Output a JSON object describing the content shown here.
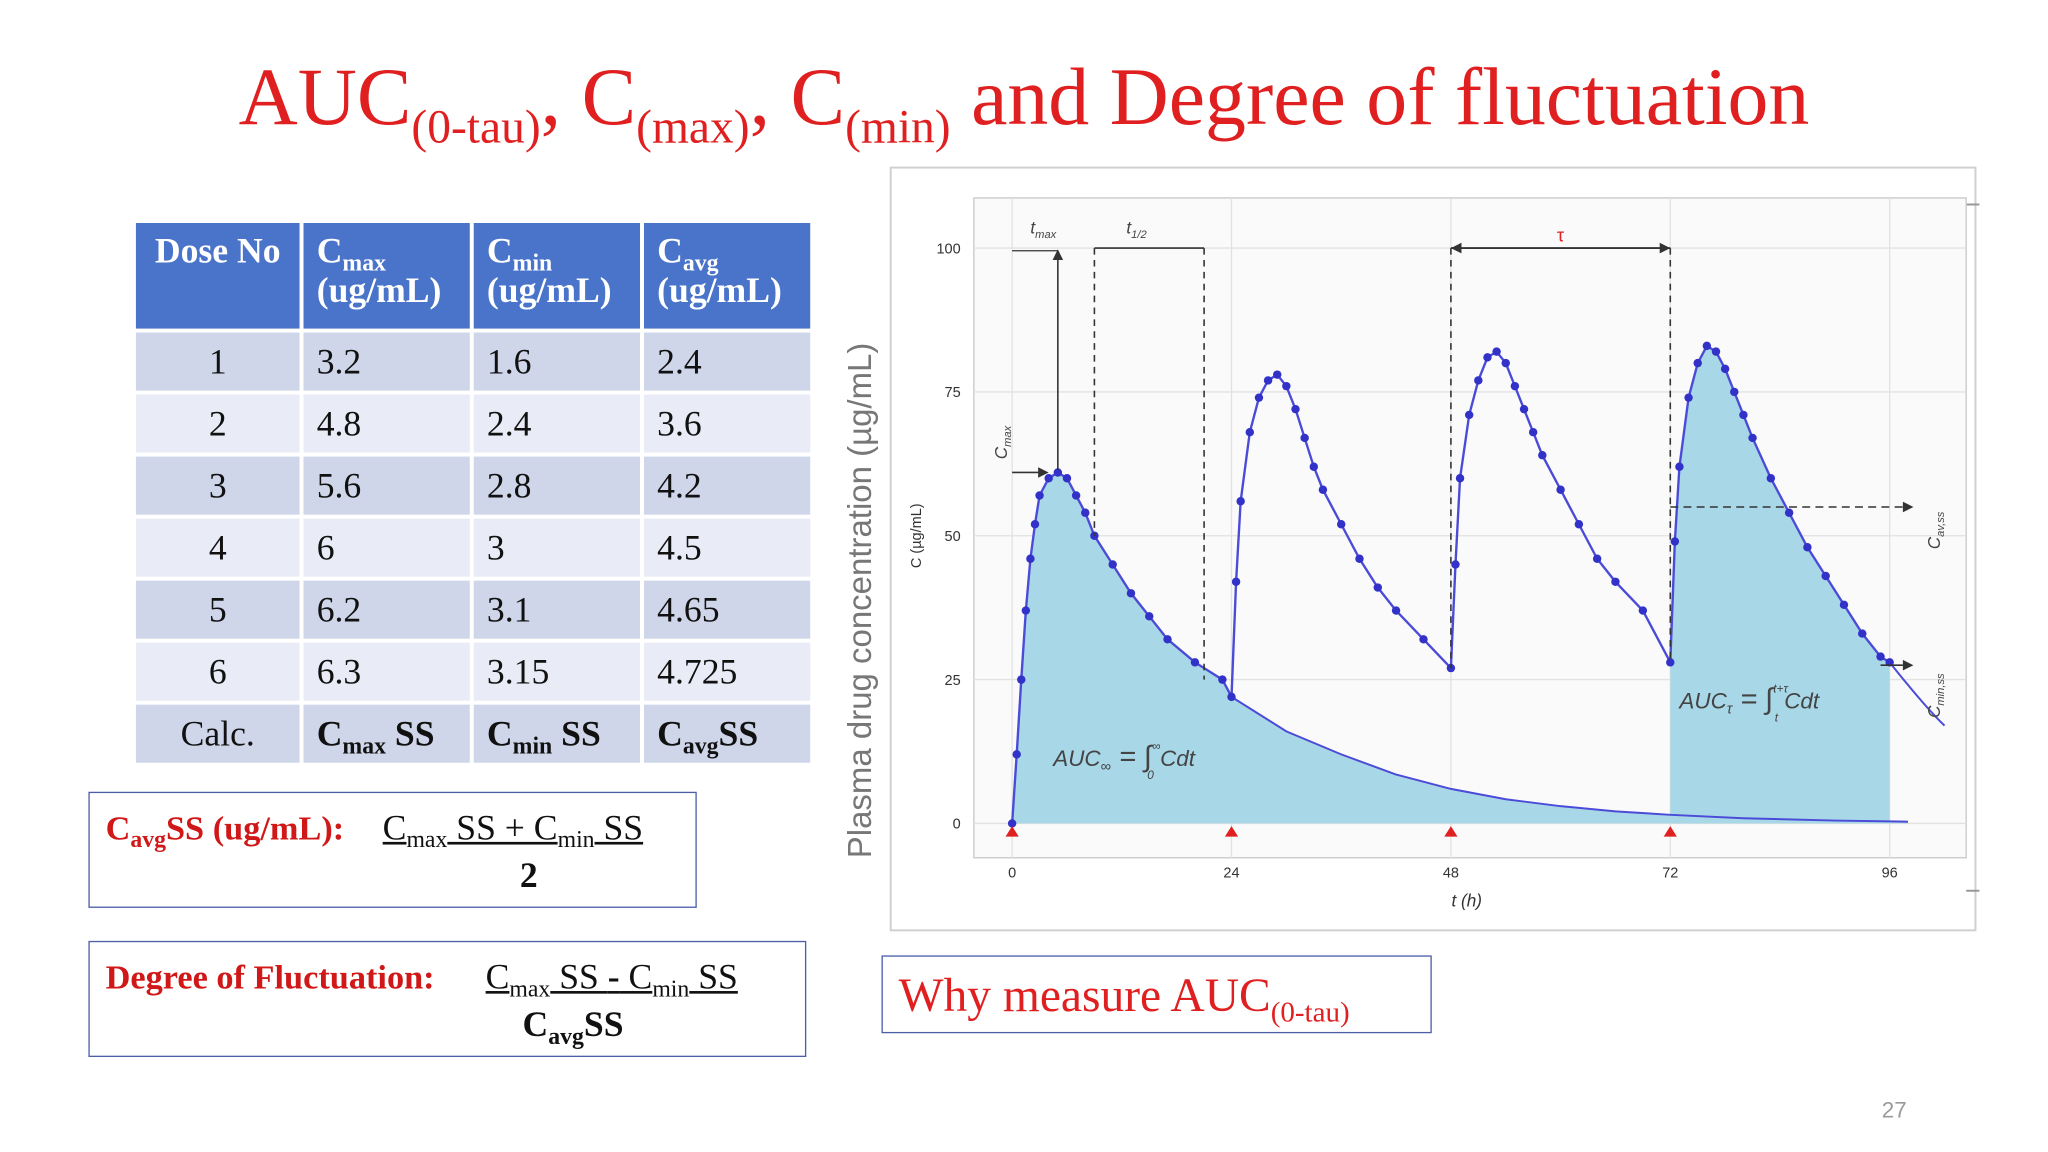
{
  "slide": {
    "title": {
      "part1": "AUC",
      "sub1": "(0-tau)",
      "sep1": ", C",
      "sub2": "(max)",
      "sep2": ", C",
      "sub3": "(min)",
      "rest": " and Degree of fluctuation"
    },
    "page_number": "27"
  },
  "table": {
    "headers": [
      {
        "main": "Dose No",
        "sub": "",
        "unit": ""
      },
      {
        "main": "C",
        "sub": "max",
        "unit": "(ug/mL)"
      },
      {
        "main": "C",
        "sub": "min",
        "unit": "(ug/mL)"
      },
      {
        "main": "C",
        "sub": "avg",
        "unit": "(ug/mL)"
      }
    ],
    "rows": [
      [
        "1",
        "3.2",
        "1.6",
        "2.4"
      ],
      [
        "2",
        "4.8",
        "2.4",
        "3.6"
      ],
      [
        "3",
        "5.6",
        "2.8",
        "4.2"
      ],
      [
        "4",
        "6",
        "3",
        "4.5"
      ],
      [
        "5",
        "6.2",
        "3.1",
        "4.65"
      ],
      [
        "6",
        "6.3",
        "3.15",
        "4.725"
      ]
    ],
    "calc_row": {
      "label": "Calc.",
      "cells": [
        {
          "main": "C",
          "sub": "max",
          "suffix": " SS"
        },
        {
          "main": "C",
          "sub": "min",
          "suffix": " SS"
        },
        {
          "main": "C",
          "sub": "avg",
          "suffix": "SS"
        }
      ]
    }
  },
  "formula_avg": {
    "label_main": "C",
    "label_sub": "avg",
    "label_rest": "SS (ug/mL):",
    "num_c1": "C",
    "num_sub1": "max",
    "num_mid": " SS + C",
    "num_sub2": "min",
    "num_end": " SS",
    "denominator": "2"
  },
  "formula_fluct": {
    "label": "Degree of Fluctuation:",
    "num_c1": "C",
    "num_sub1": "max",
    "num_mid": " SS ",
    "num_minus": "-",
    "num_c2": " C",
    "num_sub2": "min",
    "num_end": " SS",
    "den_main": "C",
    "den_sub": "avg",
    "den_rest": "SS"
  },
  "why_box": {
    "text": "Why measure AUC",
    "sub": "(0-tau)"
  },
  "chart_data": {
    "type": "line",
    "outer_ylabel": "Plasma drug concentration (µg/mL)",
    "ylabel": "C (µg/mL)",
    "xlabel": "t (h)",
    "xlim": [
      0,
      96
    ],
    "ylim": [
      0,
      100
    ],
    "xticks": [
      "0",
      "24",
      "48",
      "72",
      "96"
    ],
    "yticks": [
      "0",
      "25",
      "50",
      "75",
      "100"
    ],
    "dose_times": [
      0,
      24,
      48,
      72
    ],
    "series": [
      {
        "points": [
          [
            0,
            0
          ],
          [
            0.5,
            12
          ],
          [
            1,
            25
          ],
          [
            1.5,
            37
          ],
          [
            2,
            46
          ],
          [
            2.5,
            52
          ],
          [
            3,
            57
          ],
          [
            4,
            60
          ],
          [
            5,
            61
          ],
          [
            6,
            60
          ],
          [
            7,
            57
          ],
          [
            8,
            54
          ],
          [
            9,
            50
          ],
          [
            11,
            45
          ],
          [
            13,
            40
          ],
          [
            15,
            36
          ],
          [
            17,
            32
          ],
          [
            20,
            28
          ],
          [
            23,
            25
          ],
          [
            24,
            22
          ],
          [
            24.5,
            42
          ],
          [
            25,
            56
          ],
          [
            26,
            68
          ],
          [
            27,
            74
          ],
          [
            28,
            77
          ],
          [
            29,
            78
          ],
          [
            30,
            76
          ],
          [
            31,
            72
          ],
          [
            32,
            67
          ],
          [
            33,
            62
          ],
          [
            34,
            58
          ],
          [
            36,
            52
          ],
          [
            38,
            46
          ],
          [
            40,
            41
          ],
          [
            42,
            37
          ],
          [
            45,
            32
          ],
          [
            48,
            27
          ],
          [
            48.5,
            45
          ],
          [
            49,
            60
          ],
          [
            50,
            71
          ],
          [
            51,
            77
          ],
          [
            52,
            81
          ],
          [
            53,
            82
          ],
          [
            54,
            80
          ],
          [
            55,
            76
          ],
          [
            56,
            72
          ],
          [
            57,
            68
          ],
          [
            58,
            64
          ],
          [
            60,
            58
          ],
          [
            62,
            52
          ],
          [
            64,
            46
          ],
          [
            66,
            42
          ],
          [
            69,
            37
          ],
          [
            72,
            28
          ],
          [
            72.5,
            49
          ],
          [
            73,
            62
          ],
          [
            74,
            74
          ],
          [
            75,
            80
          ],
          [
            76,
            83
          ],
          [
            77,
            82
          ],
          [
            78,
            79
          ],
          [
            79,
            75
          ],
          [
            80,
            71
          ],
          [
            81,
            67
          ],
          [
            83,
            60
          ],
          [
            85,
            54
          ],
          [
            87,
            48
          ],
          [
            89,
            43
          ],
          [
            91,
            38
          ],
          [
            93,
            33
          ],
          [
            95,
            29
          ],
          [
            96,
            28
          ]
        ]
      }
    ],
    "single_dose_tail": [
      [
        24,
        22
      ],
      [
        30,
        16
      ],
      [
        36,
        12
      ],
      [
        42,
        8.5
      ],
      [
        48,
        6
      ],
      [
        54,
        4.2
      ],
      [
        60,
        3
      ],
      [
        66,
        2.1
      ],
      [
        72,
        1.5
      ],
      [
        80,
        0.9
      ],
      [
        90,
        0.5
      ],
      [
        100,
        0.3
      ]
    ],
    "annotations": {
      "cmax_arrow_label": "C",
      "cmax_arrow_label_sub": "max",
      "tmax_label": "t",
      "tmax_label_sub": "max",
      "thalf_label": "t",
      "thalf_label_sub": "1/2",
      "tau_label": "τ",
      "auc_inf_label": "AUC",
      "auc_inf_sub": "∞",
      "auc_inf_expr": " = ∫",
      "auc_inf_lower": "0",
      "auc_inf_upper": "∞",
      "auc_inf_integrand": " Cdt",
      "auc_tau_label": "AUC",
      "auc_tau_sub": "τ",
      "auc_tau_expr": " = ∫",
      "auc_tau_lower": "t",
      "auc_tau_upper": "t+τ",
      "auc_tau_integrand": " Cdt",
      "cav_label": "C",
      "cav_sub": "av,ss",
      "cmin_label": "C",
      "cmin_sub": "min,ss"
    },
    "colors": {
      "line": "#4b4bd8",
      "point": "#3232c8",
      "fill": "#a8d8e8",
      "dose_marker": "#e02020",
      "title_red": "#e02020"
    }
  }
}
